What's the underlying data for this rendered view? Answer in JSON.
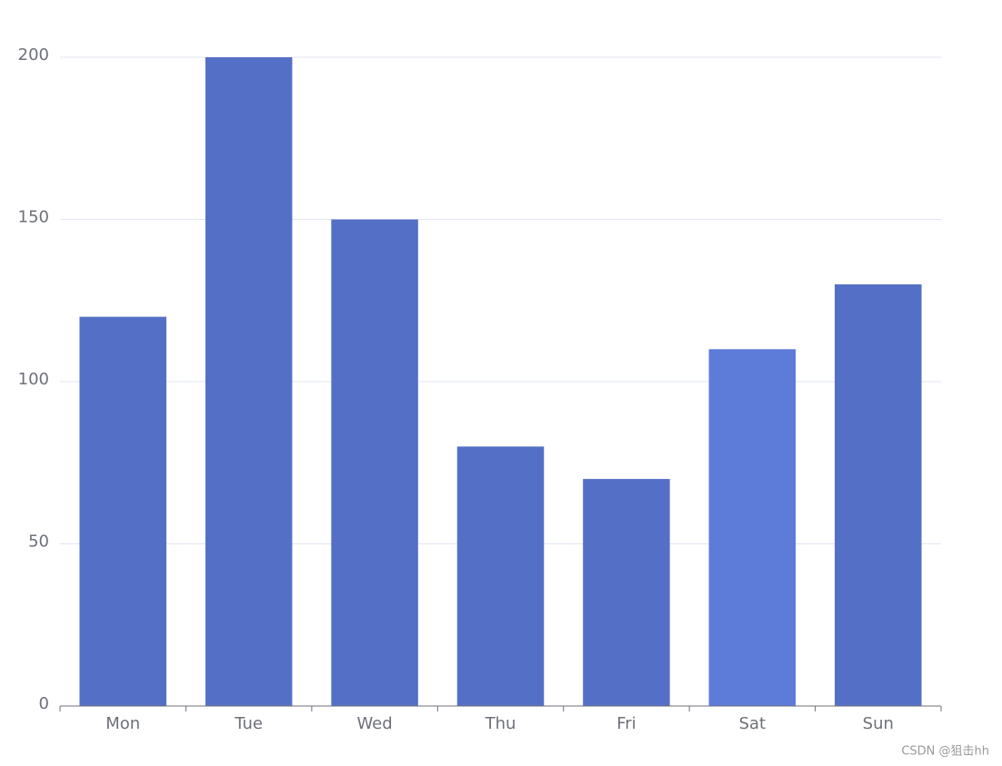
{
  "chart_data": {
    "type": "bar",
    "categories": [
      "Mon",
      "Tue",
      "Wed",
      "Thu",
      "Fri",
      "Sat",
      "Sun"
    ],
    "values": [
      120,
      200,
      150,
      80,
      70,
      110,
      130
    ],
    "colors": [
      "#5470c6",
      "#5470c6",
      "#5470c6",
      "#5470c6",
      "#5470c6",
      "#5d7bd8",
      "#5470c6"
    ],
    "ylim": [
      0,
      200
    ],
    "yticks": [
      0,
      50,
      100,
      150,
      200
    ],
    "grid": true,
    "watermark": "CSDN @狙击hh"
  }
}
